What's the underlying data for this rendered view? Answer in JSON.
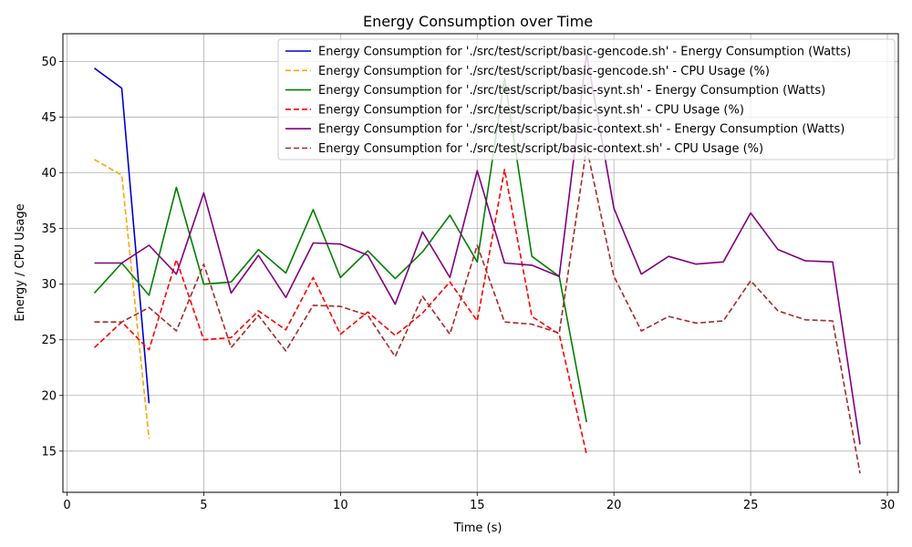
{
  "chart_data": {
    "type": "line",
    "title": "Energy Consumption over Time",
    "xlabel": "Time (s)",
    "ylabel": "Energy / CPU Usage",
    "xlim": [
      -0.15,
      30.4
    ],
    "ylim": [
      11.3,
      52.5
    ],
    "xticks": [
      0,
      5,
      10,
      15,
      20,
      25,
      30
    ],
    "yticks": [
      15,
      20,
      25,
      30,
      35,
      40,
      45,
      50
    ],
    "grid": true,
    "legend_position": "top-right",
    "series": [
      {
        "name": "Energy Consumption for './src/test/script/basic-gencode.sh' - Energy Consumption (Watts)",
        "color": "#0000cd",
        "dashed": false,
        "x": [
          1,
          2,
          3
        ],
        "y": [
          49.4,
          47.6,
          19.3
        ]
      },
      {
        "name": "Energy Consumption for './src/test/script/basic-gencode.sh' - CPU Usage (%)",
        "color": "#ffa500",
        "dashed": true,
        "x": [
          1,
          2,
          3
        ],
        "y": [
          41.2,
          39.8,
          16.1
        ]
      },
      {
        "name": "Energy Consumption for './src/test/script/basic-synt.sh' - Energy Consumption (Watts)",
        "color": "#008000",
        "dashed": false,
        "x": [
          1,
          2,
          3,
          4,
          5,
          6,
          7,
          8,
          9,
          10,
          11,
          12,
          13,
          14,
          15,
          16,
          17,
          18,
          19
        ],
        "y": [
          29.2,
          31.9,
          29.0,
          38.7,
          30.0,
          30.2,
          33.1,
          31.0,
          36.7,
          30.6,
          33.0,
          30.5,
          32.9,
          36.2,
          32.0,
          48.5,
          32.5,
          30.7,
          17.6
        ]
      },
      {
        "name": "Energy Consumption for './src/test/script/basic-synt.sh' - CPU Usage (%)",
        "color": "#ff0000",
        "dashed": true,
        "x": [
          1,
          2,
          3,
          4,
          5,
          6,
          7,
          8,
          9,
          10,
          11,
          12,
          13,
          14,
          15,
          16,
          17,
          18,
          19
        ],
        "y": [
          24.3,
          26.6,
          24.1,
          32.2,
          25.0,
          25.2,
          27.6,
          25.9,
          30.6,
          25.5,
          27.5,
          25.4,
          27.4,
          30.2,
          26.7,
          40.3,
          27.1,
          25.5,
          14.7
        ]
      },
      {
        "name": "Energy Consumption for './src/test/script/basic-context.sh' - Energy Consumption (Watts)",
        "color": "#800080",
        "dashed": false,
        "x": [
          1,
          2,
          3,
          4,
          5,
          6,
          7,
          8,
          9,
          10,
          11,
          12,
          13,
          14,
          15,
          16,
          17,
          18,
          19,
          20,
          21,
          22,
          23,
          24,
          25,
          26,
          27,
          28,
          29
        ],
        "y": [
          31.9,
          31.9,
          33.5,
          30.9,
          38.2,
          29.2,
          32.6,
          28.8,
          33.7,
          33.6,
          32.6,
          28.2,
          34.7,
          30.6,
          40.2,
          31.9,
          31.7,
          30.7,
          50.7,
          36.8,
          30.9,
          32.5,
          31.8,
          32.0,
          36.4,
          33.1,
          32.1,
          32.0,
          15.6
        ]
      },
      {
        "name": "Energy Consumption for './src/test/script/basic-context.sh' - CPU Usage (%)",
        "color": "#a52a2a",
        "dashed": true,
        "x": [
          1,
          2,
          3,
          4,
          5,
          6,
          7,
          8,
          9,
          10,
          11,
          12,
          13,
          14,
          15,
          16,
          17,
          18,
          19,
          20,
          21,
          22,
          23,
          24,
          25,
          26,
          27,
          28,
          29
        ],
        "y": [
          26.6,
          26.6,
          27.9,
          25.8,
          31.8,
          24.3,
          27.2,
          24.0,
          28.1,
          28.0,
          27.2,
          23.5,
          28.9,
          25.5,
          33.5,
          26.6,
          26.4,
          25.6,
          42.3,
          30.7,
          25.8,
          27.1,
          26.5,
          26.7,
          30.3,
          27.6,
          26.8,
          26.7,
          13.0
        ]
      }
    ]
  }
}
